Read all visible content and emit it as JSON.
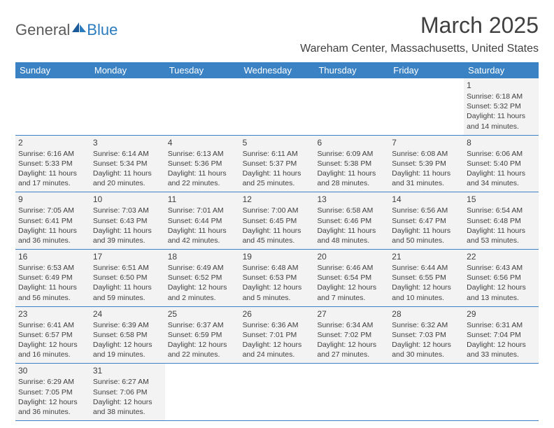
{
  "brand": {
    "text1": "General",
    "text2": "Blue",
    "icon_color": "#2b7bbf",
    "text1_color": "#5a5a5a"
  },
  "title": "March 2025",
  "location": "Wareham Center, Massachusetts, United States",
  "colors": {
    "header_bg": "#3a82c4",
    "header_text": "#ffffff",
    "cell_bg": "#f3f3f3",
    "border": "#3a82c4",
    "text": "#404040"
  },
  "day_names": [
    "Sunday",
    "Monday",
    "Tuesday",
    "Wednesday",
    "Thursday",
    "Friday",
    "Saturday"
  ],
  "weeks": [
    [
      null,
      null,
      null,
      null,
      null,
      null,
      {
        "n": "1",
        "sr": "6:18 AM",
        "ss": "5:32 PM",
        "dl": "11 hours and 14 minutes."
      }
    ],
    [
      {
        "n": "2",
        "sr": "6:16 AM",
        "ss": "5:33 PM",
        "dl": "11 hours and 17 minutes."
      },
      {
        "n": "3",
        "sr": "6:14 AM",
        "ss": "5:34 PM",
        "dl": "11 hours and 20 minutes."
      },
      {
        "n": "4",
        "sr": "6:13 AM",
        "ss": "5:36 PM",
        "dl": "11 hours and 22 minutes."
      },
      {
        "n": "5",
        "sr": "6:11 AM",
        "ss": "5:37 PM",
        "dl": "11 hours and 25 minutes."
      },
      {
        "n": "6",
        "sr": "6:09 AM",
        "ss": "5:38 PM",
        "dl": "11 hours and 28 minutes."
      },
      {
        "n": "7",
        "sr": "6:08 AM",
        "ss": "5:39 PM",
        "dl": "11 hours and 31 minutes."
      },
      {
        "n": "8",
        "sr": "6:06 AM",
        "ss": "5:40 PM",
        "dl": "11 hours and 34 minutes."
      }
    ],
    [
      {
        "n": "9",
        "sr": "7:05 AM",
        "ss": "6:41 PM",
        "dl": "11 hours and 36 minutes."
      },
      {
        "n": "10",
        "sr": "7:03 AM",
        "ss": "6:43 PM",
        "dl": "11 hours and 39 minutes."
      },
      {
        "n": "11",
        "sr": "7:01 AM",
        "ss": "6:44 PM",
        "dl": "11 hours and 42 minutes."
      },
      {
        "n": "12",
        "sr": "7:00 AM",
        "ss": "6:45 PM",
        "dl": "11 hours and 45 minutes."
      },
      {
        "n": "13",
        "sr": "6:58 AM",
        "ss": "6:46 PM",
        "dl": "11 hours and 48 minutes."
      },
      {
        "n": "14",
        "sr": "6:56 AM",
        "ss": "6:47 PM",
        "dl": "11 hours and 50 minutes."
      },
      {
        "n": "15",
        "sr": "6:54 AM",
        "ss": "6:48 PM",
        "dl": "11 hours and 53 minutes."
      }
    ],
    [
      {
        "n": "16",
        "sr": "6:53 AM",
        "ss": "6:49 PM",
        "dl": "11 hours and 56 minutes."
      },
      {
        "n": "17",
        "sr": "6:51 AM",
        "ss": "6:50 PM",
        "dl": "11 hours and 59 minutes."
      },
      {
        "n": "18",
        "sr": "6:49 AM",
        "ss": "6:52 PM",
        "dl": "12 hours and 2 minutes."
      },
      {
        "n": "19",
        "sr": "6:48 AM",
        "ss": "6:53 PM",
        "dl": "12 hours and 5 minutes."
      },
      {
        "n": "20",
        "sr": "6:46 AM",
        "ss": "6:54 PM",
        "dl": "12 hours and 7 minutes."
      },
      {
        "n": "21",
        "sr": "6:44 AM",
        "ss": "6:55 PM",
        "dl": "12 hours and 10 minutes."
      },
      {
        "n": "22",
        "sr": "6:43 AM",
        "ss": "6:56 PM",
        "dl": "12 hours and 13 minutes."
      }
    ],
    [
      {
        "n": "23",
        "sr": "6:41 AM",
        "ss": "6:57 PM",
        "dl": "12 hours and 16 minutes."
      },
      {
        "n": "24",
        "sr": "6:39 AM",
        "ss": "6:58 PM",
        "dl": "12 hours and 19 minutes."
      },
      {
        "n": "25",
        "sr": "6:37 AM",
        "ss": "6:59 PM",
        "dl": "12 hours and 22 minutes."
      },
      {
        "n": "26",
        "sr": "6:36 AM",
        "ss": "7:01 PM",
        "dl": "12 hours and 24 minutes."
      },
      {
        "n": "27",
        "sr": "6:34 AM",
        "ss": "7:02 PM",
        "dl": "12 hours and 27 minutes."
      },
      {
        "n": "28",
        "sr": "6:32 AM",
        "ss": "7:03 PM",
        "dl": "12 hours and 30 minutes."
      },
      {
        "n": "29",
        "sr": "6:31 AM",
        "ss": "7:04 PM",
        "dl": "12 hours and 33 minutes."
      }
    ],
    [
      {
        "n": "30",
        "sr": "6:29 AM",
        "ss": "7:05 PM",
        "dl": "12 hours and 36 minutes."
      },
      {
        "n": "31",
        "sr": "6:27 AM",
        "ss": "7:06 PM",
        "dl": "12 hours and 38 minutes."
      },
      null,
      null,
      null,
      null,
      null
    ]
  ],
  "labels": {
    "sunrise": "Sunrise: ",
    "sunset": "Sunset: ",
    "daylight": "Daylight: "
  }
}
